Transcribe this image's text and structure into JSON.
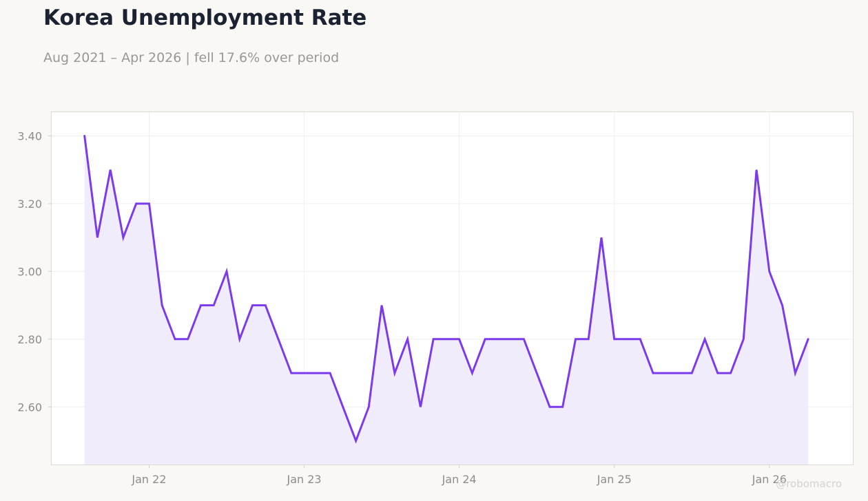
{
  "chart_data": {
    "type": "area",
    "title": "Korea Unemployment Rate",
    "subtitle": "Aug 2021 – Apr 2026 | fell 17.6% over period",
    "xlabel": "",
    "ylabel": "",
    "x_tick_labels": [
      "Jan 22",
      "Jan 23",
      "Jan 24",
      "Jan 25",
      "Jan 26"
    ],
    "y_tick_labels": [
      "2.60",
      "2.80",
      "3.00",
      "3.20",
      "3.40"
    ],
    "ylim": [
      2.43,
      3.47
    ],
    "xlim": [
      "2021-05-15",
      "2026-07-15"
    ],
    "grid": true,
    "line_color": "#7c3aed",
    "fill_color": "#f1ecfb",
    "series": [
      {
        "x": [
          "2021-08",
          "2021-09",
          "2021-10",
          "2021-11",
          "2021-12",
          "2022-01",
          "2022-02",
          "2022-03",
          "2022-04",
          "2022-05",
          "2022-06",
          "2022-07",
          "2022-08",
          "2022-09",
          "2022-10",
          "2022-11",
          "2022-12",
          "2023-01",
          "2023-02",
          "2023-03",
          "2023-04",
          "2023-05",
          "2023-06",
          "2023-07",
          "2023-08",
          "2023-09",
          "2023-10",
          "2023-11",
          "2023-12",
          "2024-01",
          "2024-02",
          "2024-03",
          "2024-04",
          "2024-05",
          "2024-06",
          "2024-07",
          "2024-08",
          "2024-09",
          "2024-10",
          "2024-11",
          "2024-12",
          "2025-01",
          "2025-02",
          "2025-03",
          "2025-04",
          "2025-05",
          "2025-06",
          "2025-07",
          "2025-08",
          "2025-09",
          "2025-10",
          "2025-11",
          "2025-12",
          "2026-01",
          "2026-02",
          "2026-03",
          "2026-04"
        ],
        "values": [
          3.4,
          3.1,
          3.3,
          3.1,
          3.2,
          3.2,
          2.9,
          2.8,
          2.8,
          2.9,
          2.9,
          3.0,
          2.8,
          2.9,
          2.9,
          2.8,
          2.7,
          2.7,
          2.7,
          2.7,
          2.6,
          2.5,
          2.6,
          2.9,
          2.7,
          2.8,
          2.6,
          2.8,
          2.8,
          2.8,
          2.7,
          2.8,
          2.8,
          2.8,
          2.8,
          2.7,
          2.6,
          2.6,
          2.8,
          2.8,
          3.1,
          2.8,
          2.8,
          2.8,
          2.7,
          2.7,
          2.7,
          2.7,
          2.8,
          2.7,
          2.7,
          2.8,
          3.3,
          3.0,
          2.9,
          2.7,
          2.8
        ]
      }
    ],
    "watermark": "@robomacro"
  }
}
